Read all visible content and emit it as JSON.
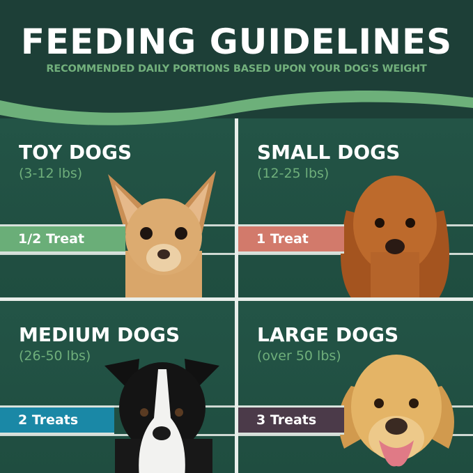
{
  "header": {
    "title": "FEEDING GUIDELINES",
    "subtitle": "RECOMMENDED DAILY PORTIONS BASED UPON YOUR DOG'S WEIGHT"
  },
  "colors": {
    "background": "#1d3f37",
    "panel": "#235446",
    "wave": "#6db07a",
    "accent_text": "#6faf7b"
  },
  "panels": [
    {
      "name": "TOY DOGS",
      "range": "(3-12 lbs)",
      "portion": "1/2 Treat",
      "bar_color": "#6aae78",
      "dog": "chihuahua"
    },
    {
      "name": "SMALL DOGS",
      "range": "(12-25 lbs)",
      "portion": "1 Treat",
      "bar_color": "#d27a6b",
      "dog": "cocker-spaniel"
    },
    {
      "name": "MEDIUM DOGS",
      "range": "(26-50 lbs)",
      "portion": "2 Treats",
      "bar_color": "#1a88a6",
      "dog": "border-collie"
    },
    {
      "name": "LARGE DOGS",
      "range": "(over 50 lbs)",
      "portion": "3 Treats",
      "bar_color": "#4b3a49",
      "dog": "golden-retriever"
    }
  ]
}
